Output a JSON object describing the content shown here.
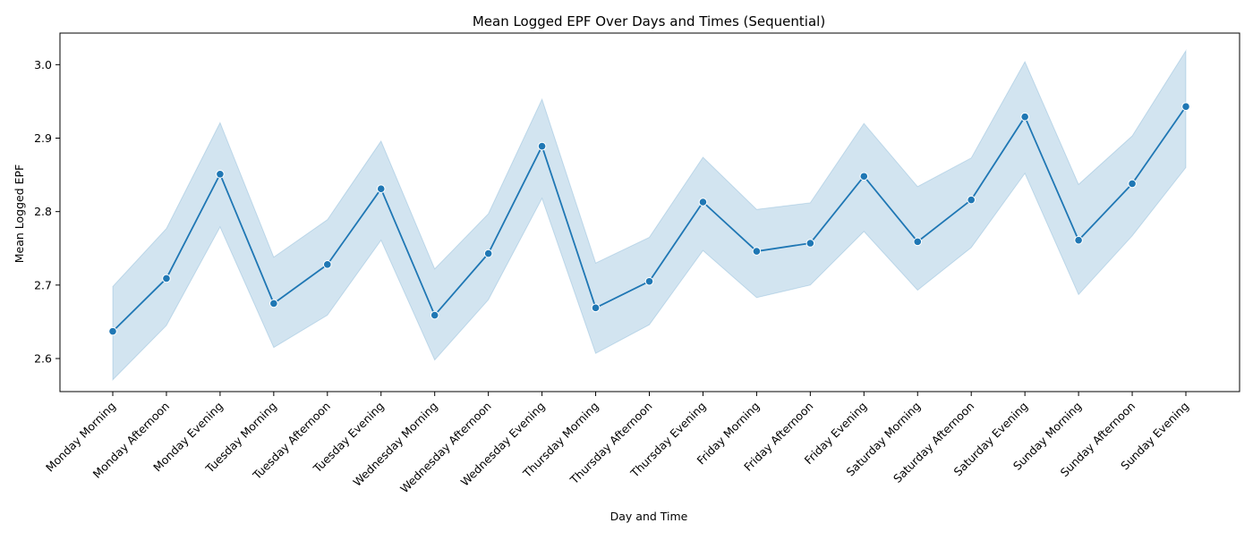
{
  "chart_data": {
    "type": "line",
    "title": "Mean Logged EPF Over Days and Times (Sequential)",
    "xlabel": "Day and Time",
    "ylabel": "Mean Logged EPF",
    "ylim": [
      2.555,
      3.043
    ],
    "yticks": [
      2.6,
      2.7,
      2.8,
      2.9,
      3.0
    ],
    "ytick_labels": [
      "2.6",
      "2.7",
      "2.8",
      "2.9",
      "3.0"
    ],
    "grid": false,
    "legend": "none",
    "categories": [
      "Monday Morning",
      "Monday Afternoon",
      "Monday Evening",
      "Tuesday Morning",
      "Tuesday Afternoon",
      "Tuesday Evening",
      "Wednesday Morning",
      "Wednesday Afternoon",
      "Wednesday Evening",
      "Thursday Morning",
      "Thursday Afternoon",
      "Thursday Evening",
      "Friday Morning",
      "Friday Afternoon",
      "Friday Evening",
      "Saturday Morning",
      "Saturday Afternoon",
      "Saturday Evening",
      "Sunday Morning",
      "Sunday Afternoon",
      "Sunday Evening"
    ],
    "series": [
      {
        "values": [
          2.637,
          2.709,
          2.851,
          2.675,
          2.728,
          2.831,
          2.659,
          2.743,
          2.889,
          2.669,
          2.705,
          2.813,
          2.746,
          2.757,
          2.848,
          2.759,
          2.816,
          2.929,
          2.761,
          2.838,
          2.943
        ],
        "ci_lower": [
          2.571,
          2.645,
          2.779,
          2.615,
          2.659,
          2.761,
          2.598,
          2.68,
          2.818,
          2.607,
          2.646,
          2.747,
          2.683,
          2.7,
          2.773,
          2.693,
          2.751,
          2.852,
          2.687,
          2.767,
          2.86
        ],
        "ci_upper": [
          2.698,
          2.777,
          2.921,
          2.738,
          2.789,
          2.896,
          2.722,
          2.797,
          2.953,
          2.73,
          2.765,
          2.874,
          2.803,
          2.812,
          2.92,
          2.834,
          2.873,
          3.004,
          2.837,
          2.903,
          3.019
        ]
      }
    ],
    "colors": {
      "line": "#1f77b4",
      "band": "#1f77b4",
      "marker_edge": "#ffffff",
      "axes": "#000000"
    }
  }
}
